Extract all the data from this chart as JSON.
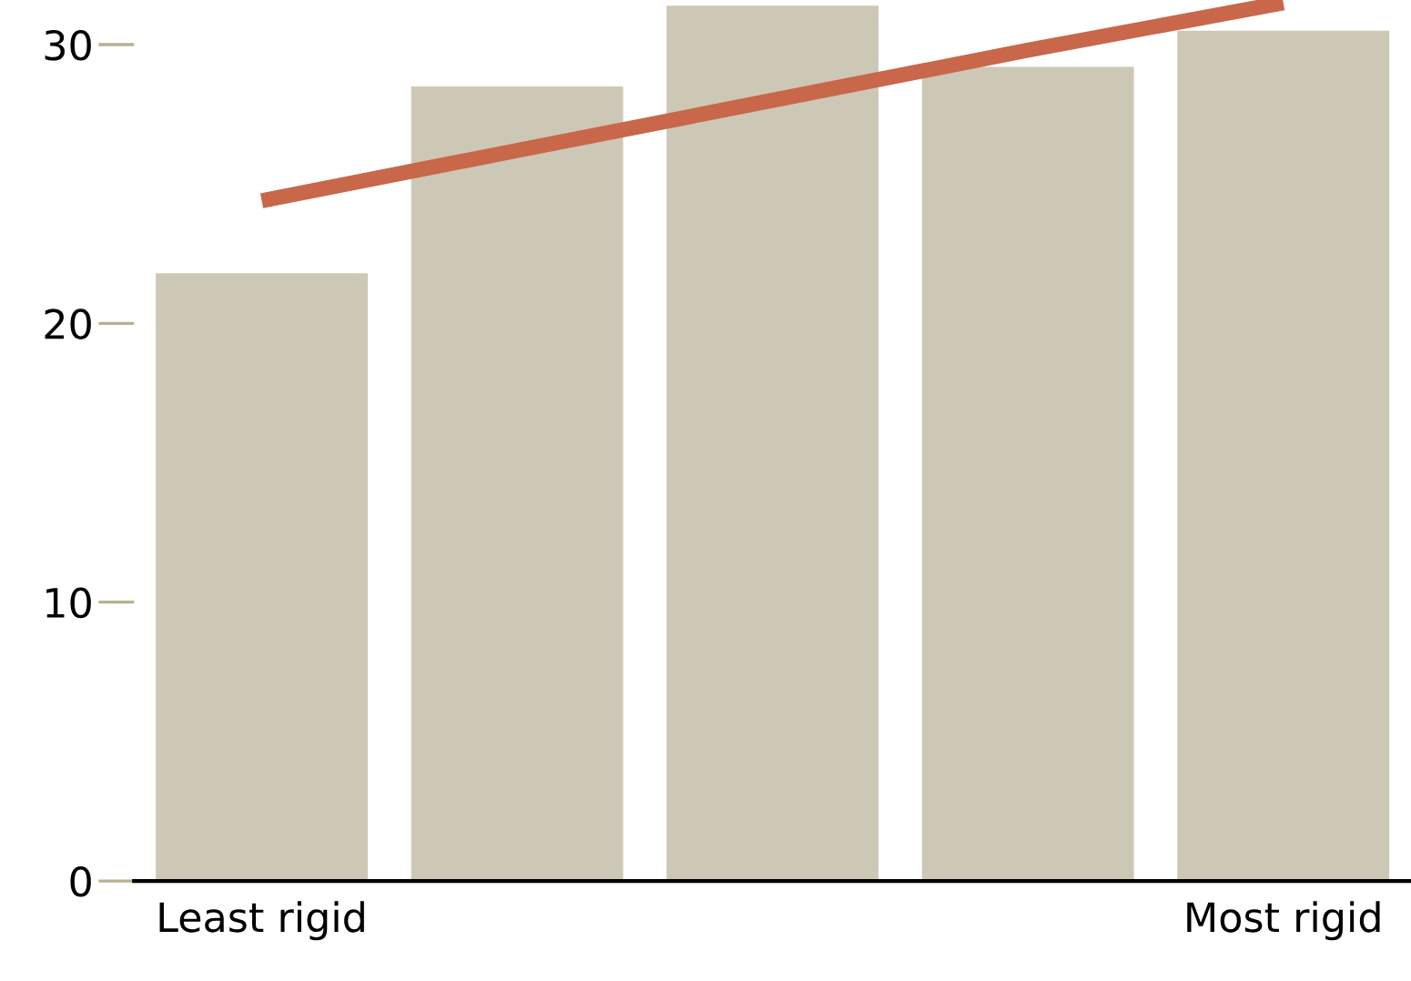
{
  "chart_data": {
    "type": "bar",
    "categories": [
      "Least rigid",
      null,
      null,
      null,
      "Most rigid"
    ],
    "series": [
      {
        "color": "#cdc8b5",
        "values": [
          21.8,
          28.5,
          31.4,
          29.2,
          30.5
        ]
      },
      {
        "type": "line",
        "color": "#c8674a",
        "values": [
          24.4,
          26.2,
          28.0,
          29.8,
          31.5
        ]
      }
    ],
    "ylim": [
      0,
      31.6
    ],
    "yticks": [
      0,
      10,
      20,
      30
    ],
    "grid": false,
    "legend": false
  }
}
